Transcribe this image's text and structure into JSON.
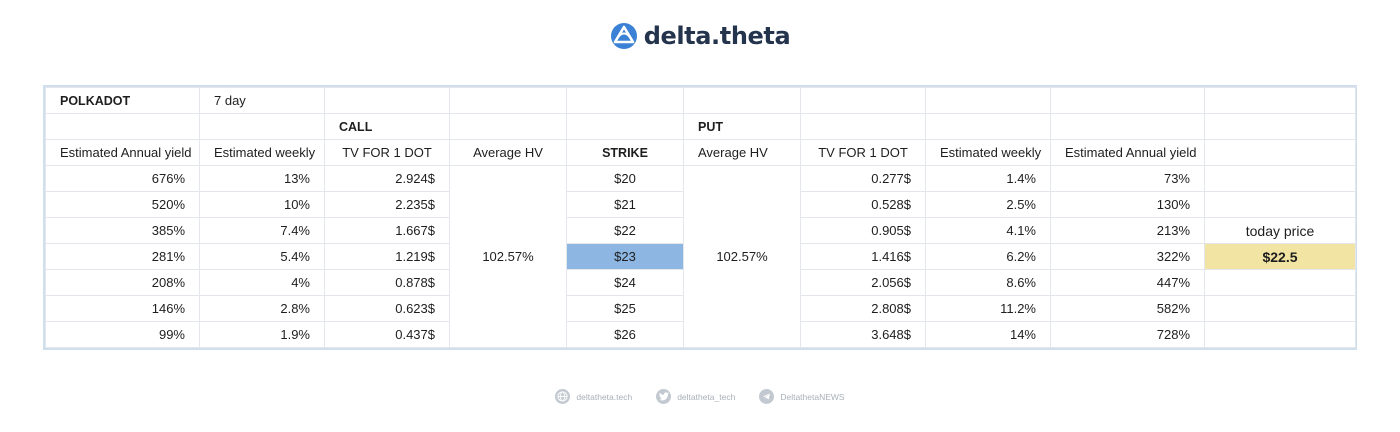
{
  "brand": {
    "name": "delta.theta",
    "logo_icon": "delta-theta-logo-icon",
    "color": "#24344d",
    "logo_color": "#3b82d6"
  },
  "table": {
    "asset": "POLKADOT",
    "period": "7 day",
    "call_label": "CALL",
    "put_label": "PUT",
    "headers": {
      "call_annual": "Estimated Annual yield",
      "call_weekly": "Estimated weekly",
      "call_tv": "TV FOR 1 DOT",
      "call_hv": "Average HV",
      "strike": "STRIKE",
      "put_hv": "Average HV",
      "put_tv": "TV FOR 1 DOT",
      "put_weekly": "Estimated weekly",
      "put_annual": "Estimated Annual yield"
    },
    "call_hv": "102.57%",
    "put_hv": "102.57%",
    "today_price_label": "today price",
    "today_price": "$22.5",
    "highlight_colors": {
      "strike": "#8db7e2",
      "today_price": "#f2e4a3"
    },
    "rows": [
      {
        "call_annual": "676%",
        "call_weekly": "13%",
        "call_tv": "2.924$",
        "strike": "$20",
        "put_tv": "0.277$",
        "put_weekly": "1.4%",
        "put_annual": "73%"
      },
      {
        "call_annual": "520%",
        "call_weekly": "10%",
        "call_tv": "2.235$",
        "strike": "$21",
        "put_tv": "0.528$",
        "put_weekly": "2.5%",
        "put_annual": "130%"
      },
      {
        "call_annual": "385%",
        "call_weekly": "7.4%",
        "call_tv": "1.667$",
        "strike": "$22",
        "put_tv": "0.905$",
        "put_weekly": "4.1%",
        "put_annual": "213%"
      },
      {
        "call_annual": "281%",
        "call_weekly": "5.4%",
        "call_tv": "1.219$",
        "strike": "$23",
        "put_tv": "1.416$",
        "put_weekly": "6.2%",
        "put_annual": "322%"
      },
      {
        "call_annual": "208%",
        "call_weekly": "4%",
        "call_tv": "0.878$",
        "strike": "$24",
        "put_tv": "2.056$",
        "put_weekly": "8.6%",
        "put_annual": "447%"
      },
      {
        "call_annual": "146%",
        "call_weekly": "2.8%",
        "call_tv": "0.623$",
        "strike": "$25",
        "put_tv": "2.808$",
        "put_weekly": "11.2%",
        "put_annual": "582%"
      },
      {
        "call_annual": "99%",
        "call_weekly": "1.9%",
        "call_tv": "0.437$",
        "strike": "$26",
        "put_tv": "3.648$",
        "put_weekly": "14%",
        "put_annual": "728%"
      }
    ]
  },
  "footer": {
    "items": [
      {
        "icon": "globe-icon",
        "label": "deltatheta.tech"
      },
      {
        "icon": "twitter-icon",
        "label": "deltatheta_tech"
      },
      {
        "icon": "telegram-icon",
        "label": "DeltathetaNEWS"
      }
    ]
  }
}
